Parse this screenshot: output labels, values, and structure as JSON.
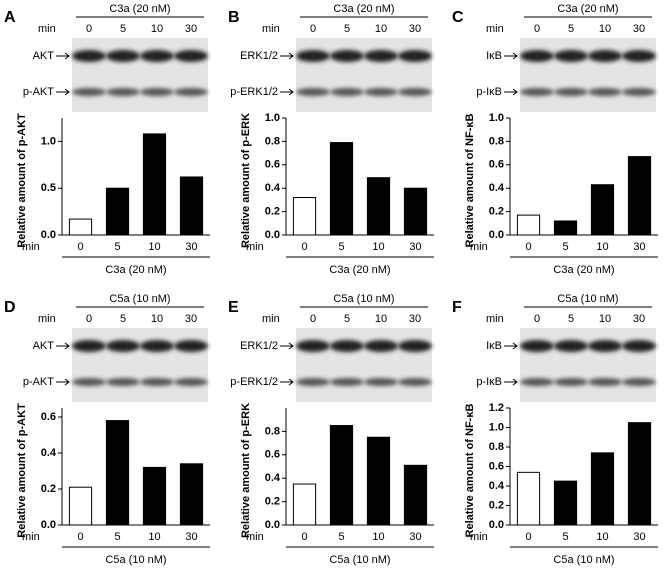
{
  "chart_data": [
    {
      "type": "bar",
      "panel": "A",
      "treatment": "C3a (20 nM)",
      "min_label": "min",
      "blot_labels": [
        "AKT",
        "p-AKT"
      ],
      "categories": [
        "0",
        "5",
        "10",
        "30"
      ],
      "values": [
        0.17,
        0.5,
        1.08,
        0.62
      ],
      "bar_colors": [
        "#ffffff",
        "#000000",
        "#000000",
        "#000000"
      ],
      "ylabel": "Relative amount of p-AKT",
      "ylim": [
        0,
        1.25
      ],
      "yticks": [
        {
          "value": 0,
          "label": "0.0"
        },
        0.5,
        {
          "value": 1,
          "label": "1.0"
        }
      ]
    },
    {
      "type": "bar",
      "panel": "B",
      "treatment": "C3a (20 nM)",
      "min_label": "min",
      "blot_labels": [
        "ERK1/2",
        "p-ERK1/2"
      ],
      "categories": [
        "0",
        "5",
        "10",
        "30"
      ],
      "values": [
        0.32,
        0.79,
        0.49,
        0.4
      ],
      "bar_colors": [
        "#ffffff",
        "#000000",
        "#000000",
        "#000000"
      ],
      "ylabel": "Relative amount of p-ERK",
      "ylim": [
        0,
        1.0
      ],
      "yticks": [
        {
          "value": 0,
          "label": "0.0"
        },
        0.2,
        0.4,
        0.6,
        0.8,
        {
          "value": 1,
          "label": "1.0"
        }
      ]
    },
    {
      "type": "bar",
      "panel": "C",
      "treatment": "C3a (20 nM)",
      "min_label": "min",
      "blot_labels": [
        "IκB",
        "p-IκB"
      ],
      "categories": [
        "0",
        "5",
        "10",
        "30"
      ],
      "values": [
        0.17,
        0.12,
        0.43,
        0.67
      ],
      "bar_colors": [
        "#ffffff",
        "#000000",
        "#000000",
        "#000000"
      ],
      "ylabel": "Relative amount of NF-κB",
      "ylim": [
        0,
        1.0
      ],
      "yticks": [
        {
          "value": 0,
          "label": "0.0"
        },
        0.2,
        0.4,
        0.6,
        0.8,
        {
          "value": 1,
          "label": "1.0"
        }
      ]
    },
    {
      "type": "bar",
      "panel": "D",
      "treatment": "C5a (10 nM)",
      "min_label": "min",
      "blot_labels": [
        "AKT",
        "p-AKT"
      ],
      "categories": [
        "0",
        "5",
        "10",
        "30"
      ],
      "values": [
        0.21,
        0.58,
        0.32,
        0.34
      ],
      "bar_colors": [
        "#ffffff",
        "#000000",
        "#000000",
        "#000000"
      ],
      "ylabel": "Relative amount of p-AKT",
      "ylim": [
        0,
        0.65
      ],
      "yticks": [
        {
          "value": 0,
          "label": "0.0"
        },
        0.2,
        0.4,
        0.6
      ]
    },
    {
      "type": "bar",
      "panel": "E",
      "treatment": "C5a (10 nM)",
      "min_label": "min",
      "blot_labels": [
        "ERK1/2",
        "p-ERK1/2"
      ],
      "categories": [
        "0",
        "5",
        "10",
        "30"
      ],
      "values": [
        0.35,
        0.85,
        0.75,
        0.51
      ],
      "bar_colors": [
        "#ffffff",
        "#000000",
        "#000000",
        "#000000"
      ],
      "ylabel": "Relative amount of p-ERK",
      "ylim": [
        0,
        1.0
      ],
      "yticks": [
        {
          "value": 0,
          "label": "0.0"
        },
        0.2,
        0.4,
        0.6,
        0.8
      ]
    },
    {
      "type": "bar",
      "panel": "F",
      "treatment": "C5a (10 nM)",
      "min_label": "min",
      "blot_labels": [
        "IκB",
        "p-IκB"
      ],
      "categories": [
        "0",
        "5",
        "10",
        "30"
      ],
      "values": [
        0.54,
        0.45,
        0.74,
        1.05
      ],
      "bar_colors": [
        "#ffffff",
        "#000000",
        "#000000",
        "#000000"
      ],
      "ylabel": "Relative amount of NF-κB",
      "ylim": [
        0,
        1.2
      ],
      "yticks": [
        {
          "value": 0,
          "label": "0.0"
        },
        0.2,
        0.4,
        0.6,
        0.8,
        {
          "value": 1,
          "label": "1.0"
        },
        1.2
      ]
    }
  ]
}
